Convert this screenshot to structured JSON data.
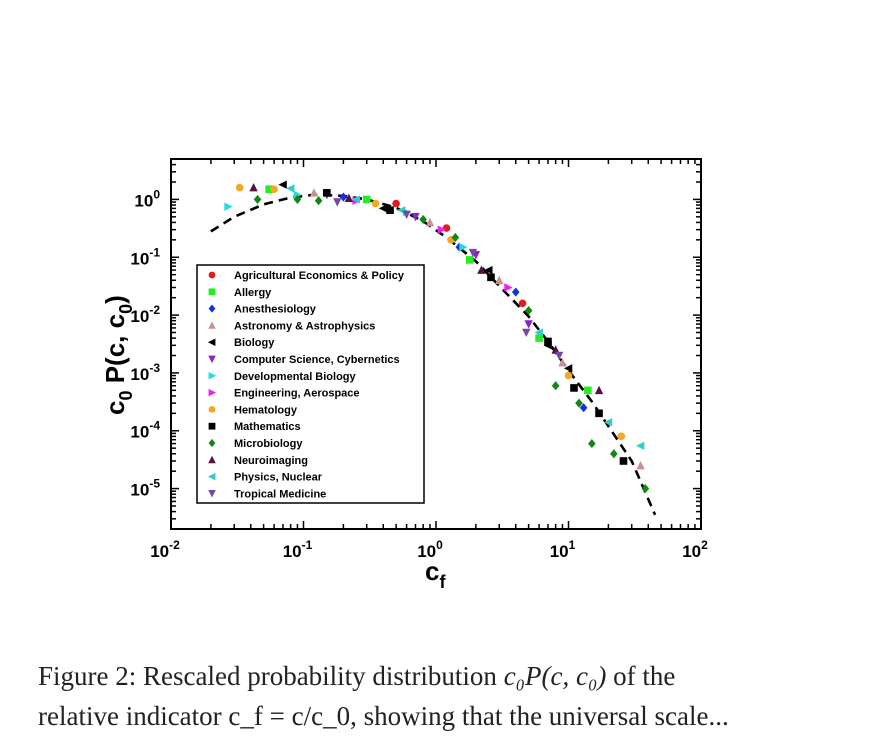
{
  "chart_data": {
    "type": "scatter",
    "x_scale": "log",
    "y_scale": "log",
    "xlim": [
      0.01,
      100
    ],
    "ylim": [
      2e-06,
      5
    ],
    "xlabel": {
      "base": "c",
      "sub": "f"
    },
    "ylabel": {
      "c": "c",
      "sub0": "0",
      "mid": " P(c, c",
      "sub1": "0",
      "end": ")"
    },
    "x_ticks": [
      {
        "base": "10",
        "exp": "-2",
        "v": 0.01
      },
      {
        "base": "10",
        "exp": "-1",
        "v": 0.1
      },
      {
        "base": "10",
        "exp": "0",
        "v": 1
      },
      {
        "base": "10",
        "exp": "1",
        "v": 10
      },
      {
        "base": "10",
        "exp": "2",
        "v": 100
      }
    ],
    "y_ticks": [
      {
        "base": "10",
        "exp": "0",
        "v": 1
      },
      {
        "base": "10",
        "exp": "-1",
        "v": 0.1
      },
      {
        "base": "10",
        "exp": "-2",
        "v": 0.01
      },
      {
        "base": "10",
        "exp": "-3",
        "v": 0.001
      },
      {
        "base": "10",
        "exp": "-4",
        "v": 0.0001
      },
      {
        "base": "10",
        "exp": "-5",
        "v": 1e-05
      }
    ],
    "legend_position": "lower-left",
    "fit_line": {
      "style": "dashed",
      "color": "#000000",
      "points": [
        [
          0.02,
          0.28
        ],
        [
          0.03,
          0.5
        ],
        [
          0.05,
          0.82
        ],
        [
          0.08,
          1.08
        ],
        [
          0.12,
          1.2
        ],
        [
          0.2,
          1.15
        ],
        [
          0.3,
          1.0
        ],
        [
          0.5,
          0.72
        ],
        [
          0.8,
          0.42
        ],
        [
          1.2,
          0.22
        ],
        [
          2,
          0.085
        ],
        [
          3,
          0.032
        ],
        [
          5,
          0.0095
        ],
        [
          7,
          0.0035
        ],
        [
          10,
          0.0011
        ],
        [
          15,
          0.00032
        ],
        [
          20,
          0.00012
        ],
        [
          30,
          3e-05
        ],
        [
          45,
          3.5e-06
        ]
      ]
    },
    "series": [
      {
        "name": "Agricultural Economics & Policy",
        "marker": "circle",
        "color": "#e41a1c",
        "points": [
          [
            0.5,
            0.85
          ],
          [
            1.2,
            0.32
          ],
          [
            4.5,
            0.016
          ]
        ]
      },
      {
        "name": "Allergy",
        "marker": "square",
        "color": "#22ee22",
        "points": [
          [
            0.055,
            1.5
          ],
          [
            0.3,
            1.0
          ],
          [
            1.8,
            0.09
          ],
          [
            6,
            0.004
          ],
          [
            14,
            0.0005
          ]
        ]
      },
      {
        "name": "Anesthesiology",
        "marker": "diamond",
        "color": "#1133dd",
        "points": [
          [
            0.2,
            1.1
          ],
          [
            1.5,
            0.15
          ],
          [
            4,
            0.025
          ],
          [
            13,
            0.00025
          ]
        ]
      },
      {
        "name": "Astronomy & Astrophysics",
        "marker": "triangle-up",
        "color": "#c89090",
        "points": [
          [
            0.12,
            1.3
          ],
          [
            0.9,
            0.4
          ],
          [
            3,
            0.04
          ],
          [
            9,
            0.0015
          ],
          [
            35,
            2.5e-05
          ]
        ]
      },
      {
        "name": "Biology",
        "marker": "triangle-left",
        "color": "#000000",
        "points": [
          [
            0.07,
            1.8
          ],
          [
            0.4,
            0.7
          ],
          [
            2.5,
            0.06
          ],
          [
            7,
            0.003
          ],
          [
            10,
            0.0012
          ]
        ]
      },
      {
        "name": "Computer Science, Cybernetics",
        "marker": "triangle-down",
        "color": "#8822cc",
        "points": [
          [
            0.15,
            1.2
          ],
          [
            0.7,
            0.5
          ],
          [
            2,
            0.11
          ],
          [
            5,
            0.007
          ]
        ]
      },
      {
        "name": "Developmental Biology",
        "marker": "triangle-right",
        "color": "#22dddd",
        "points": [
          [
            0.027,
            0.75
          ],
          [
            0.09,
            1.2
          ],
          [
            0.6,
            0.6
          ],
          [
            1.6,
            0.15
          ]
        ]
      },
      {
        "name": "Engineering, Aerospace",
        "marker": "triangle-right",
        "color": "#ee22ee",
        "points": [
          [
            0.25,
            0.95
          ],
          [
            1.1,
            0.3
          ],
          [
            3.5,
            0.03
          ]
        ]
      },
      {
        "name": "Hematology",
        "marker": "circle",
        "color": "#f5a623",
        "points": [
          [
            0.033,
            1.6
          ],
          [
            0.06,
            1.5
          ],
          [
            0.35,
            0.85
          ],
          [
            1.3,
            0.2
          ],
          [
            10,
            0.0009
          ],
          [
            25,
            8e-05
          ]
        ]
      },
      {
        "name": "Mathematics",
        "marker": "square",
        "color": "#000000",
        "points": [
          [
            0.15,
            1.3
          ],
          [
            0.45,
            0.65
          ],
          [
            2.6,
            0.045
          ],
          [
            7,
            0.0035
          ],
          [
            11,
            0.00055
          ],
          [
            17,
            0.0002
          ],
          [
            26,
            3e-05
          ]
        ]
      },
      {
        "name": "Microbiology",
        "marker": "diamond",
        "color": "#118811",
        "points": [
          [
            0.045,
            1.0
          ],
          [
            0.09,
            1.0
          ],
          [
            0.13,
            0.95
          ],
          [
            0.8,
            0.45
          ],
          [
            1.4,
            0.22
          ],
          [
            5,
            0.012
          ],
          [
            8,
            0.0006
          ],
          [
            12,
            0.0003
          ],
          [
            15,
            6e-05
          ],
          [
            22,
            4e-05
          ],
          [
            38,
            1e-05
          ]
        ]
      },
      {
        "name": "Neuroimaging",
        "marker": "triangle-up",
        "color": "#551144",
        "points": [
          [
            0.042,
            1.6
          ],
          [
            0.22,
            1.05
          ],
          [
            2.2,
            0.06
          ],
          [
            8,
            0.0025
          ],
          [
            17,
            0.0005
          ]
        ]
      },
      {
        "name": "Physics, Nuclear",
        "marker": "triangle-left",
        "color": "#33cccc",
        "points": [
          [
            0.08,
            1.55
          ],
          [
            0.25,
            1.0
          ],
          [
            0.55,
            0.65
          ],
          [
            6,
            0.005
          ],
          [
            20,
            0.00014
          ],
          [
            35,
            5.5e-05
          ]
        ]
      },
      {
        "name": "Tropical Medicine",
        "marker": "triangle-down",
        "color": "#7744aa",
        "points": [
          [
            0.18,
            0.9
          ],
          [
            0.6,
            0.55
          ],
          [
            1.9,
            0.12
          ],
          [
            4.8,
            0.005
          ],
          [
            8.5,
            0.002
          ]
        ]
      }
    ]
  },
  "caption": {
    "line1": "Figure 2: Rescaled probability distribution ",
    "math": "c₀P(c, c₀)",
    "line1_end": " of the",
    "line2": "relative indicator c_f = c/c_0, showing that the universal scale..."
  }
}
